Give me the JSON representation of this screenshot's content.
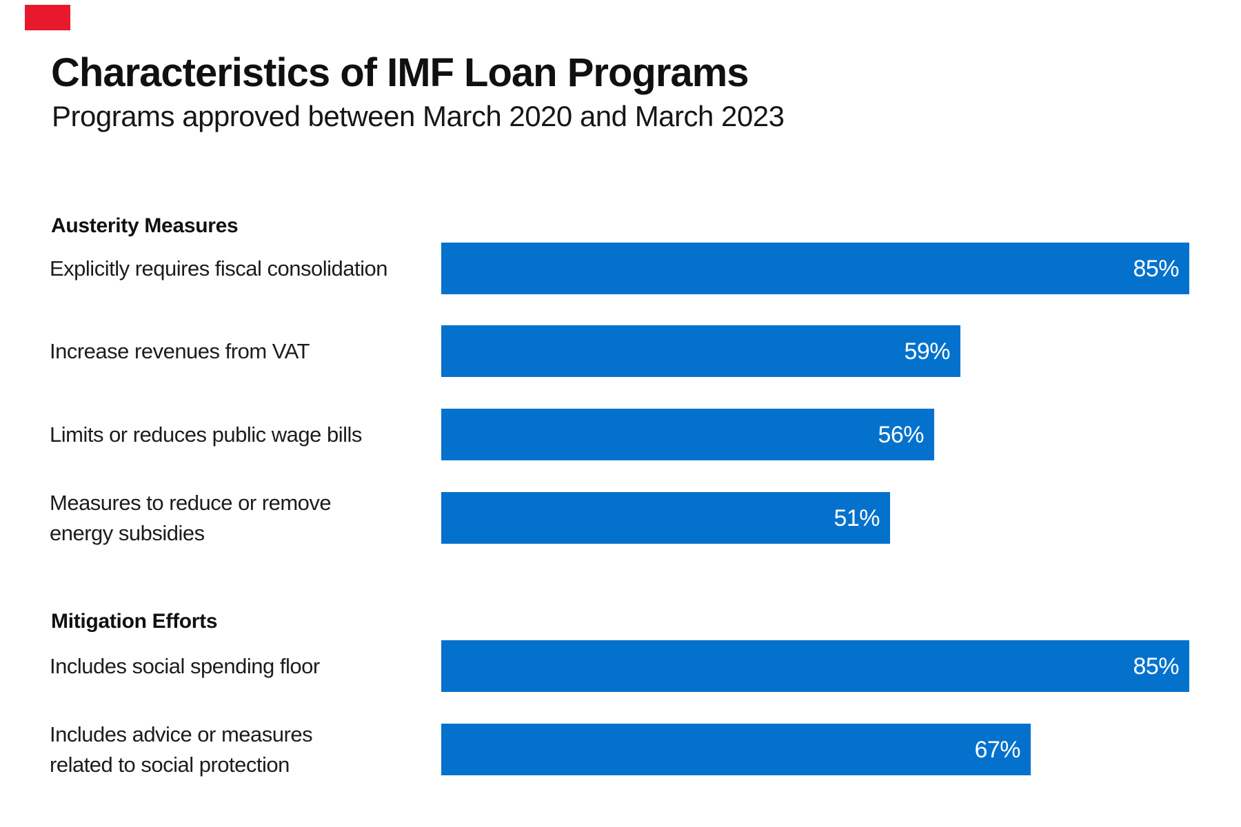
{
  "brand": {
    "mark_color": "#e8192d",
    "mark_name": "red-brand-mark"
  },
  "header": {
    "title": "Characteristics of IMF Loan Programs",
    "subtitle": "Programs approved between March 2020 and March 2023"
  },
  "chart_data": {
    "type": "bar",
    "orientation": "horizontal",
    "unit": "%",
    "bar_color": "#0472cd",
    "value_label_color": "#ffffff",
    "xlim": [
      0,
      100
    ],
    "grid": false,
    "legend": false,
    "value_labels_position": "inside-right",
    "sections": [
      {
        "title": "Austerity Measures",
        "categories": [
          "Explicitly requires fiscal consolidation",
          "Increase revenues from VAT",
          "Limits or reduces public wage bills",
          "Measures to reduce or remove energy subsidies"
        ],
        "values": [
          85,
          59,
          56,
          51
        ],
        "rows": [
          {
            "label": "Explicitly requires fiscal consolidation",
            "value": 85,
            "display": "85%"
          },
          {
            "label": "Increase revenues from VAT",
            "value": 59,
            "display": "59%"
          },
          {
            "label": "Limits or reduces public wage bills",
            "value": 56,
            "display": "56%"
          },
          {
            "label": "Measures to reduce or remove energy subsidies",
            "value": 51,
            "display": "51%",
            "label_lines": [
              "Measures to reduce or remove",
              "energy subsidies"
            ]
          }
        ]
      },
      {
        "title": "Mitigation Efforts",
        "categories": [
          "Includes social spending floor",
          "Includes advice or measures related to social protection"
        ],
        "values": [
          85,
          67
        ],
        "rows": [
          {
            "label": "Includes social spending floor",
            "value": 85,
            "display": "85%"
          },
          {
            "label": "Includes advice or measures related to social protection",
            "value": 67,
            "display": "67%",
            "label_lines": [
              "Includes advice or measures",
              "related to social protection"
            ]
          }
        ]
      }
    ]
  }
}
